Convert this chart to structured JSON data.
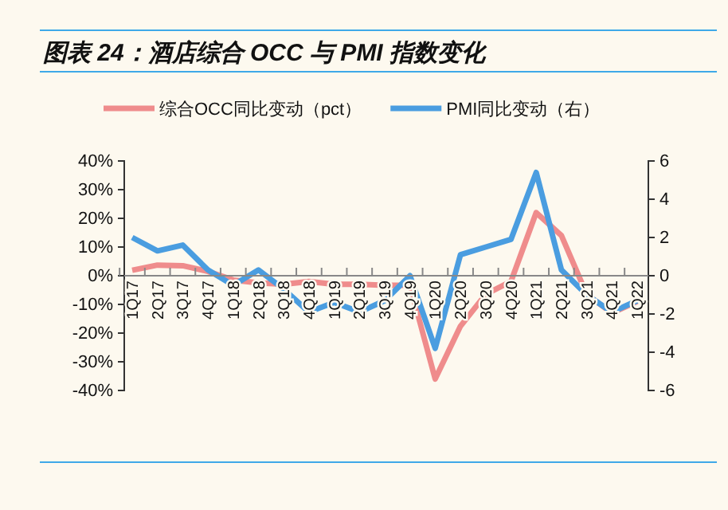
{
  "chart_data": {
    "type": "line",
    "title": "图表 24：酒店综合 OCC 与 PMI 指数变化",
    "categories": [
      "1Q17",
      "2Q17",
      "3Q17",
      "4Q17",
      "1Q18",
      "2Q18",
      "3Q18",
      "4Q18",
      "1Q19",
      "2Q19",
      "3Q19",
      "4Q19",
      "1Q20",
      "2Q20",
      "3Q20",
      "4Q20",
      "1Q21",
      "2Q21",
      "3Q21",
      "4Q21",
      "1Q22"
    ],
    "series": [
      {
        "name": "综合OCC同比变动（pct）",
        "color": "#ef8c8c",
        "values": [
          1.9,
          3.7,
          3.5,
          1.5,
          -1.5,
          -2.5,
          -3,
          -2,
          -3,
          -3,
          -3.3,
          -3.3,
          -36,
          -17.6,
          -6.5,
          -2,
          22,
          14,
          -6.5,
          -13,
          -9
        ]
      },
      {
        "name": "PMI同比变动（右）",
        "color": "#4a9de0",
        "axis": "y2",
        "values": [
          2,
          1.3,
          1.6,
          0.3,
          -0.5,
          0.3,
          -0.7,
          -1.9,
          -1.4,
          -1.9,
          -1.3,
          0,
          -3.8,
          1.1,
          1.5,
          1.9,
          5.4,
          0.3,
          -1,
          -1.9,
          -1.3
        ]
      }
    ],
    "ylim": [
      -40,
      40
    ],
    "yticks": [
      {
        "value": -40,
        "label": "-40%"
      },
      {
        "value": -30,
        "label": "-30%"
      },
      {
        "value": -20,
        "label": "-20%"
      },
      {
        "value": -10,
        "label": "-10%"
      },
      {
        "value": 0,
        "label": "0%"
      },
      {
        "value": 10,
        "label": "10%"
      },
      {
        "value": 20,
        "label": "20%"
      },
      {
        "value": 30,
        "label": "30%"
      },
      {
        "value": 40,
        "label": "40%"
      }
    ],
    "y2lim": [
      -6,
      6
    ],
    "y2ticks": [
      -6,
      -4,
      -2,
      0,
      2,
      4,
      6
    ],
    "legend": "top",
    "grid": false,
    "marker": "none",
    "line_style": "solid"
  }
}
